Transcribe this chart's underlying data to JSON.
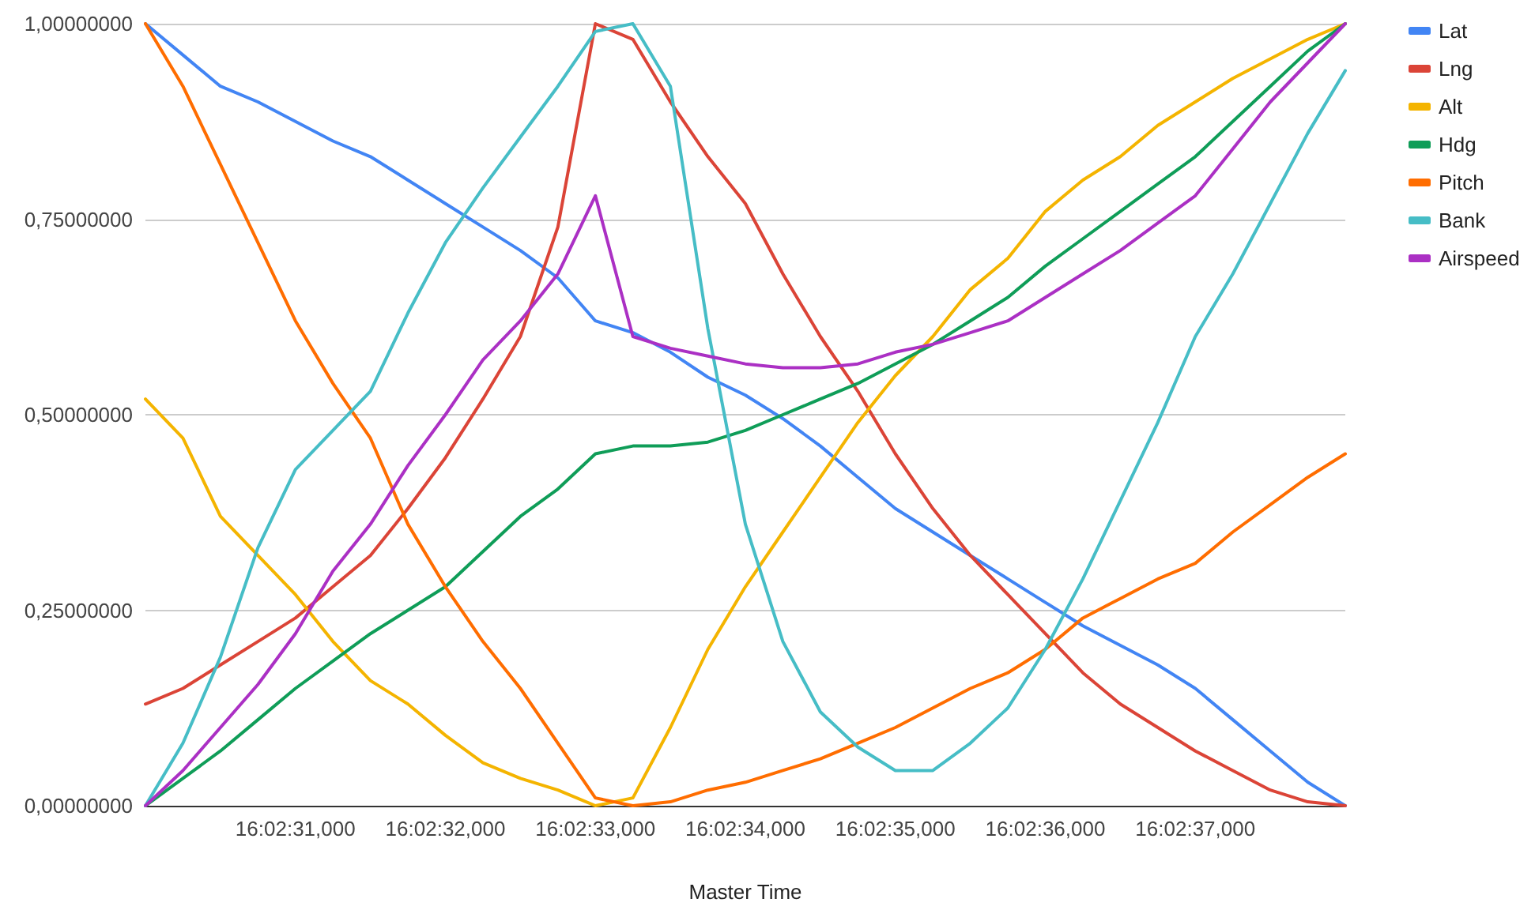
{
  "chart_data": {
    "type": "line",
    "xlabel": "Master Time",
    "categories": [
      null,
      null,
      null,
      null,
      "16:02:31,000",
      null,
      null,
      null,
      "16:02:32,000",
      null,
      null,
      null,
      "16:02:33,000",
      null,
      null,
      null,
      "16:02:34,000",
      null,
      null,
      null,
      "16:02:35,000",
      null,
      null,
      null,
      "16:02:36,000",
      null,
      null,
      null,
      "16:02:37,000",
      null,
      null,
      null,
      null
    ],
    "ylim": [
      0,
      1
    ],
    "yticks": [
      {
        "value": 0,
        "label": "0,00000000"
      },
      {
        "value": 0.25,
        "label": "0,25000000"
      },
      {
        "value": 0.5,
        "label": "0,50000000"
      },
      {
        "value": 0.75,
        "label": "0,75000000"
      },
      {
        "value": 1,
        "label": "1,00000000"
      }
    ],
    "grid": "y",
    "legend": "top right",
    "marker": "none",
    "line_style": "solid",
    "series": [
      {
        "name": "Lat",
        "color": "#4285f4",
        "values": [
          1.0,
          0.96,
          0.92,
          0.9,
          0.875,
          0.85,
          0.83,
          0.8,
          0.77,
          0.74,
          0.71,
          0.675,
          0.62,
          0.605,
          0.58,
          0.548,
          0.525,
          0.495,
          0.46,
          0.42,
          0.38,
          0.35,
          0.32,
          0.29,
          0.26,
          0.23,
          0.205,
          0.18,
          0.15,
          0.11,
          0.07,
          0.03,
          0.0
        ]
      },
      {
        "name": "Lng",
        "color": "#db4437",
        "values": [
          0.13,
          0.15,
          0.18,
          0.21,
          0.24,
          0.28,
          0.32,
          0.38,
          0.445,
          0.52,
          0.6,
          0.74,
          1.0,
          0.98,
          0.9,
          0.83,
          0.77,
          0.68,
          0.6,
          0.53,
          0.45,
          0.38,
          0.32,
          0.27,
          0.22,
          0.17,
          0.13,
          0.1,
          0.07,
          0.045,
          0.02,
          0.005,
          0.0
        ]
      },
      {
        "name": "Alt",
        "color": "#f4b400",
        "values": [
          0.52,
          0.47,
          0.37,
          0.32,
          0.27,
          0.21,
          0.16,
          0.13,
          0.09,
          0.055,
          0.035,
          0.02,
          0.0,
          0.01,
          0.1,
          0.2,
          0.28,
          0.35,
          0.42,
          0.49,
          0.55,
          0.6,
          0.66,
          0.7,
          0.76,
          0.8,
          0.83,
          0.87,
          0.9,
          0.93,
          0.955,
          0.98,
          1.0
        ]
      },
      {
        "name": "Hdg",
        "color": "#0f9d58",
        "values": [
          0.0,
          0.035,
          0.07,
          0.11,
          0.15,
          0.185,
          0.22,
          0.25,
          0.28,
          0.325,
          0.37,
          0.405,
          0.45,
          0.46,
          0.46,
          0.465,
          0.48,
          0.5,
          0.52,
          0.54,
          0.565,
          0.59,
          0.62,
          0.65,
          0.69,
          0.725,
          0.76,
          0.795,
          0.83,
          0.875,
          0.92,
          0.965,
          1.0
        ]
      },
      {
        "name": "Pitch",
        "color": "#ff6d00",
        "values": [
          1.0,
          0.92,
          0.82,
          0.72,
          0.62,
          0.54,
          0.47,
          0.36,
          0.28,
          0.21,
          0.15,
          0.08,
          0.01,
          0.0,
          0.005,
          0.02,
          0.03,
          0.045,
          0.06,
          0.08,
          0.1,
          0.125,
          0.15,
          0.17,
          0.2,
          0.24,
          0.265,
          0.29,
          0.31,
          0.35,
          0.385,
          0.42,
          0.45
        ]
      },
      {
        "name": "Bank",
        "color": "#46bdc6",
        "values": [
          0.0,
          0.08,
          0.19,
          0.33,
          0.43,
          0.48,
          0.53,
          0.63,
          0.72,
          0.79,
          0.855,
          0.92,
          0.99,
          1.0,
          0.92,
          0.61,
          0.36,
          0.21,
          0.12,
          0.075,
          0.045,
          0.045,
          0.08,
          0.125,
          0.2,
          0.29,
          0.39,
          0.49,
          0.6,
          0.68,
          0.77,
          0.86,
          0.94
        ]
      },
      {
        "name": "Airspeed",
        "color": "#ab30c4",
        "values": [
          0.0,
          0.045,
          0.1,
          0.155,
          0.22,
          0.3,
          0.36,
          0.435,
          0.5,
          0.57,
          0.62,
          0.68,
          0.78,
          0.6,
          0.585,
          0.575,
          0.565,
          0.56,
          0.56,
          0.565,
          0.58,
          0.59,
          0.605,
          0.62,
          0.65,
          0.68,
          0.71,
          0.745,
          0.78,
          0.84,
          0.9,
          0.95,
          1.0
        ]
      }
    ]
  }
}
